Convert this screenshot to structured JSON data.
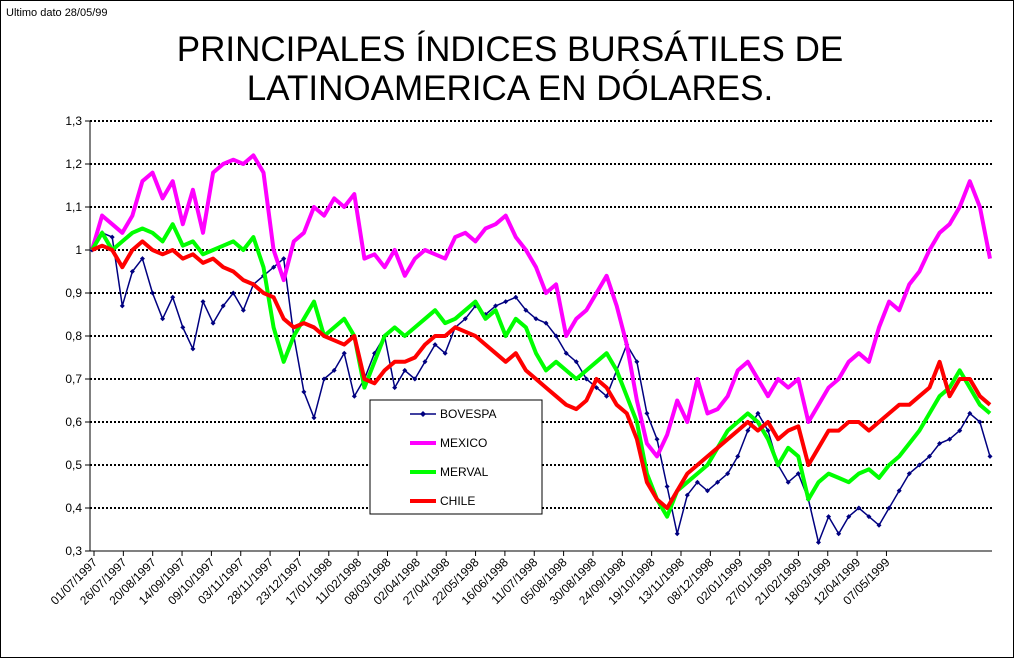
{
  "note": "Ultimo dato 28/05/99",
  "chart_data": {
    "type": "line",
    "title_line1": "PRINCIPALES ÍNDICES BURSÁTILES DE",
    "title_line2": "LATINOAMERICA EN DÓLARES.",
    "ylim": [
      0.3,
      1.3
    ],
    "yticks": [
      "0,3",
      "0,4",
      "0,5",
      "0,6",
      "0,7",
      "0,8",
      "0,9",
      "1",
      "1,1",
      "1,2",
      "1,3"
    ],
    "x_tick_labels": [
      "01/07/1997",
      "26/07/1997",
      "20/08/1997",
      "14/09/1997",
      "09/10/1997",
      "03/11/1997",
      "28/11/1997",
      "23/12/1997",
      "17/01/1998",
      "11/02/1998",
      "08/03/1998",
      "02/04/1998",
      "27/04/1998",
      "22/05/1998",
      "16/06/1998",
      "11/07/1998",
      "05/08/1998",
      "30/08/1998",
      "24/09/1998",
      "19/10/1998",
      "13/11/1998",
      "08/12/1998",
      "02/01/1999",
      "27/01/1999",
      "21/02/1999",
      "18/03/1999",
      "12/04/1999",
      "07/05/1999"
    ],
    "grid": "horizontal dotted",
    "legend_position": "inside, lower-left",
    "series": [
      {
        "name": "BOVESPA",
        "color": "#000080",
        "marker": "diamond",
        "values": [
          1.0,
          1.04,
          1.03,
          0.87,
          0.95,
          0.98,
          0.9,
          0.84,
          0.89,
          0.82,
          0.77,
          0.88,
          0.83,
          0.87,
          0.9,
          0.86,
          0.92,
          0.94,
          0.96,
          0.98,
          0.8,
          0.67,
          0.61,
          0.7,
          0.72,
          0.76,
          0.66,
          0.7,
          0.76,
          0.8,
          0.68,
          0.72,
          0.7,
          0.74,
          0.78,
          0.76,
          0.82,
          0.84,
          0.87,
          0.85,
          0.87,
          0.88,
          0.89,
          0.86,
          0.84,
          0.83,
          0.8,
          0.76,
          0.74,
          0.7,
          0.68,
          0.66,
          0.72,
          0.78,
          0.74,
          0.62,
          0.56,
          0.45,
          0.34,
          0.43,
          0.46,
          0.44,
          0.46,
          0.48,
          0.52,
          0.58,
          0.62,
          0.58,
          0.5,
          0.46,
          0.48,
          0.42,
          0.32,
          0.38,
          0.34,
          0.38,
          0.4,
          0.38,
          0.36,
          0.4,
          0.44,
          0.48,
          0.5,
          0.52,
          0.55,
          0.56,
          0.58,
          0.62,
          0.6,
          0.52
        ]
      },
      {
        "name": "MEXICO",
        "color": "#ff00ff",
        "marker": "none",
        "values": [
          1.0,
          1.08,
          1.06,
          1.04,
          1.08,
          1.16,
          1.18,
          1.12,
          1.16,
          1.06,
          1.14,
          1.04,
          1.18,
          1.2,
          1.21,
          1.2,
          1.22,
          1.18,
          1.0,
          0.93,
          1.02,
          1.04,
          1.1,
          1.08,
          1.12,
          1.1,
          1.13,
          0.98,
          0.99,
          0.96,
          1.0,
          0.94,
          0.98,
          1.0,
          0.99,
          0.98,
          1.03,
          1.04,
          1.02,
          1.05,
          1.06,
          1.08,
          1.03,
          1.0,
          0.96,
          0.9,
          0.92,
          0.8,
          0.84,
          0.86,
          0.9,
          0.94,
          0.87,
          0.78,
          0.65,
          0.55,
          0.52,
          0.57,
          0.65,
          0.6,
          0.7,
          0.62,
          0.63,
          0.66,
          0.72,
          0.74,
          0.7,
          0.66,
          0.7,
          0.68,
          0.7,
          0.6,
          0.64,
          0.68,
          0.7,
          0.74,
          0.76,
          0.74,
          0.82,
          0.88,
          0.86,
          0.92,
          0.95,
          1.0,
          1.04,
          1.06,
          1.1,
          1.16,
          1.1,
          0.98
        ]
      },
      {
        "name": "MERVAL",
        "color": "#00ff00",
        "marker": "none",
        "values": [
          1.0,
          1.04,
          1.0,
          1.02,
          1.04,
          1.05,
          1.04,
          1.02,
          1.06,
          1.01,
          1.02,
          0.99,
          1.0,
          1.01,
          1.02,
          1.0,
          1.03,
          0.96,
          0.82,
          0.74,
          0.8,
          0.84,
          0.88,
          0.8,
          0.82,
          0.84,
          0.8,
          0.68,
          0.74,
          0.8,
          0.82,
          0.8,
          0.82,
          0.84,
          0.86,
          0.83,
          0.84,
          0.86,
          0.88,
          0.84,
          0.86,
          0.8,
          0.84,
          0.82,
          0.76,
          0.72,
          0.74,
          0.72,
          0.7,
          0.72,
          0.74,
          0.76,
          0.72,
          0.66,
          0.6,
          0.48,
          0.42,
          0.38,
          0.44,
          0.46,
          0.48,
          0.5,
          0.54,
          0.58,
          0.6,
          0.62,
          0.6,
          0.56,
          0.5,
          0.54,
          0.52,
          0.42,
          0.46,
          0.48,
          0.47,
          0.46,
          0.48,
          0.49,
          0.47,
          0.5,
          0.52,
          0.55,
          0.58,
          0.62,
          0.66,
          0.68,
          0.72,
          0.68,
          0.64,
          0.62
        ]
      },
      {
        "name": "CHILE",
        "color": "#ff0000",
        "marker": "none",
        "values": [
          1.0,
          1.01,
          1.0,
          0.96,
          1.0,
          1.02,
          1.0,
          0.99,
          1.0,
          0.98,
          0.99,
          0.97,
          0.98,
          0.96,
          0.95,
          0.93,
          0.92,
          0.9,
          0.89,
          0.84,
          0.82,
          0.83,
          0.82,
          0.8,
          0.79,
          0.78,
          0.8,
          0.7,
          0.69,
          0.72,
          0.74,
          0.74,
          0.75,
          0.78,
          0.8,
          0.8,
          0.82,
          0.81,
          0.8,
          0.78,
          0.76,
          0.74,
          0.76,
          0.72,
          0.7,
          0.68,
          0.66,
          0.64,
          0.63,
          0.65,
          0.7,
          0.68,
          0.64,
          0.62,
          0.56,
          0.46,
          0.42,
          0.4,
          0.44,
          0.48,
          0.5,
          0.52,
          0.54,
          0.56,
          0.58,
          0.6,
          0.58,
          0.6,
          0.56,
          0.58,
          0.59,
          0.5,
          0.54,
          0.58,
          0.58,
          0.6,
          0.6,
          0.58,
          0.6,
          0.62,
          0.64,
          0.64,
          0.66,
          0.68,
          0.74,
          0.66,
          0.7,
          0.7,
          0.66,
          0.64
        ]
      }
    ]
  }
}
